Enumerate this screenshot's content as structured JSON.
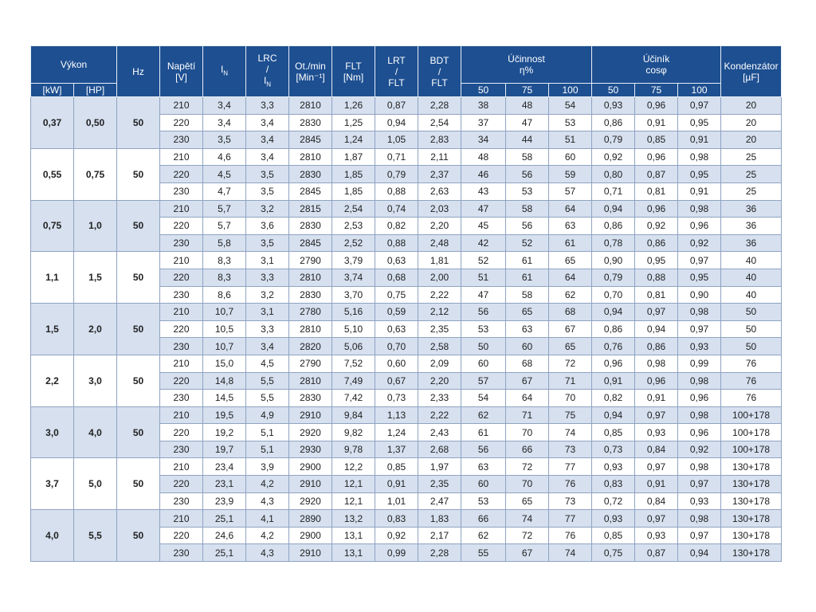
{
  "header": {
    "vykon": "Výkon",
    "kw": "[kW]",
    "hp": "[HP]",
    "hz": "Hz",
    "napeti": [
      "Napětí",
      "[V]"
    ],
    "in": [
      "I",
      "N"
    ],
    "lrc": [
      "LRC",
      "/",
      "I",
      "N"
    ],
    "ot": [
      "Ot./min",
      "[Min⁻¹]"
    ],
    "flt": [
      "FLT",
      "[Nm]"
    ],
    "lrt": [
      "LRT",
      "/",
      "FLT"
    ],
    "bdt": [
      "BDT",
      "/",
      "FLT"
    ],
    "ucinnost": [
      "Účinnost",
      "η%"
    ],
    "ucinnost_cols": [
      "50",
      "75",
      "100"
    ],
    "ucinik": [
      "Účiník",
      "cosφ"
    ],
    "ucinik_cols": [
      "50",
      "75",
      "100"
    ],
    "kondenzator": [
      "Kondenzátor",
      "[µF]"
    ]
  },
  "groups": [
    {
      "kw": "0,37",
      "hp": "0,50",
      "hz": "50",
      "rows": [
        [
          "210",
          "3,4",
          "3,3",
          "2810",
          "1,26",
          "0,87",
          "2,28",
          "38",
          "48",
          "54",
          "0,93",
          "0,96",
          "0,97",
          "20"
        ],
        [
          "220",
          "3,4",
          "3,4",
          "2830",
          "1,25",
          "0,94",
          "2,54",
          "37",
          "47",
          "53",
          "0,86",
          "0,91",
          "0,95",
          "20"
        ],
        [
          "230",
          "3,5",
          "3,4",
          "2845",
          "1,24",
          "1,05",
          "2,83",
          "34",
          "44",
          "51",
          "0,79",
          "0,85",
          "0,91",
          "20"
        ]
      ]
    },
    {
      "kw": "0,55",
      "hp": "0,75",
      "hz": "50",
      "rows": [
        [
          "210",
          "4,6",
          "3,4",
          "2810",
          "1,87",
          "0,71",
          "2,11",
          "48",
          "58",
          "60",
          "0,92",
          "0,96",
          "0,98",
          "25"
        ],
        [
          "220",
          "4,5",
          "3,5",
          "2830",
          "1,85",
          "0,79",
          "2,37",
          "46",
          "56",
          "59",
          "0,80",
          "0,87",
          "0,95",
          "25"
        ],
        [
          "230",
          "4,7",
          "3,5",
          "2845",
          "1,85",
          "0,88",
          "2,63",
          "43",
          "53",
          "57",
          "0,71",
          "0,81",
          "0,91",
          "25"
        ]
      ]
    },
    {
      "kw": "0,75",
      "hp": "1,0",
      "hz": "50",
      "rows": [
        [
          "210",
          "5,7",
          "3,2",
          "2815",
          "2,54",
          "0,74",
          "2,03",
          "47",
          "58",
          "64",
          "0,94",
          "0,96",
          "0,98",
          "36"
        ],
        [
          "220",
          "5,7",
          "3,6",
          "2830",
          "2,53",
          "0,82",
          "2,20",
          "45",
          "56",
          "63",
          "0,86",
          "0,92",
          "0,96",
          "36"
        ],
        [
          "230",
          "5,8",
          "3,5",
          "2845",
          "2,52",
          "0,88",
          "2,48",
          "42",
          "52",
          "61",
          "0,78",
          "0,86",
          "0,92",
          "36"
        ]
      ]
    },
    {
      "kw": "1,1",
      "hp": "1,5",
      "hz": "50",
      "rows": [
        [
          "210",
          "8,3",
          "3,1",
          "2790",
          "3,79",
          "0,63",
          "1,81",
          "52",
          "61",
          "65",
          "0,90",
          "0,95",
          "0,97",
          "40"
        ],
        [
          "220",
          "8,3",
          "3,3",
          "2810",
          "3,74",
          "0,68",
          "2,00",
          "51",
          "61",
          "64",
          "0,79",
          "0,88",
          "0,95",
          "40"
        ],
        [
          "230",
          "8,6",
          "3,2",
          "2830",
          "3,70",
          "0,75",
          "2,22",
          "47",
          "58",
          "62",
          "0,70",
          "0,81",
          "0,90",
          "40"
        ]
      ]
    },
    {
      "kw": "1,5",
      "hp": "2,0",
      "hz": "50",
      "rows": [
        [
          "210",
          "10,7",
          "3,1",
          "2780",
          "5,16",
          "0,59",
          "2,12",
          "56",
          "65",
          "68",
          "0,94",
          "0,97",
          "0,98",
          "50"
        ],
        [
          "220",
          "10,5",
          "3,3",
          "2810",
          "5,10",
          "0,63",
          "2,35",
          "53",
          "63",
          "67",
          "0,86",
          "0,94",
          "0,97",
          "50"
        ],
        [
          "230",
          "10,7",
          "3,4",
          "2820",
          "5,06",
          "0,70",
          "2,58",
          "50",
          "60",
          "65",
          "0,76",
          "0,86",
          "0,93",
          "50"
        ]
      ]
    },
    {
      "kw": "2,2",
      "hp": "3,0",
      "hz": "50",
      "rows": [
        [
          "210",
          "15,0",
          "4,5",
          "2790",
          "7,52",
          "0,60",
          "2,09",
          "60",
          "68",
          "72",
          "0,96",
          "0,98",
          "0,99",
          "76"
        ],
        [
          "220",
          "14,8",
          "5,5",
          "2810",
          "7,49",
          "0,67",
          "2,20",
          "57",
          "67",
          "71",
          "0,91",
          "0,96",
          "0,98",
          "76"
        ],
        [
          "230",
          "14,5",
          "5,5",
          "2830",
          "7,42",
          "0,73",
          "2,33",
          "54",
          "64",
          "70",
          "0,82",
          "0,91",
          "0,96",
          "76"
        ]
      ]
    },
    {
      "kw": "3,0",
      "hp": "4,0",
      "hz": "50",
      "rows": [
        [
          "210",
          "19,5",
          "4,9",
          "2910",
          "9,84",
          "1,13",
          "2,22",
          "62",
          "71",
          "75",
          "0,94",
          "0,97",
          "0,98",
          "100+178"
        ],
        [
          "220",
          "19,2",
          "5,1",
          "2920",
          "9,82",
          "1,24",
          "2,43",
          "61",
          "70",
          "74",
          "0,85",
          "0,93",
          "0,96",
          "100+178"
        ],
        [
          "230",
          "19,7",
          "5,1",
          "2930",
          "9,78",
          "1,37",
          "2,68",
          "56",
          "66",
          "73",
          "0,73",
          "0,84",
          "0,92",
          "100+178"
        ]
      ]
    },
    {
      "kw": "3,7",
      "hp": "5,0",
      "hz": "50",
      "rows": [
        [
          "210",
          "23,4",
          "3,9",
          "2900",
          "12,2",
          "0,85",
          "1,97",
          "63",
          "72",
          "77",
          "0,93",
          "0,97",
          "0,98",
          "130+178"
        ],
        [
          "220",
          "23,1",
          "4,2",
          "2910",
          "12,1",
          "0,91",
          "2,35",
          "60",
          "70",
          "76",
          "0,83",
          "0,91",
          "0,97",
          "130+178"
        ],
        [
          "230",
          "23,9",
          "4,3",
          "2920",
          "12,1",
          "1,01",
          "2,47",
          "53",
          "65",
          "73",
          "0,72",
          "0,84",
          "0,93",
          "130+178"
        ]
      ]
    },
    {
      "kw": "4,0",
      "hp": "5,5",
      "hz": "50",
      "rows": [
        [
          "210",
          "25,1",
          "4,1",
          "2890",
          "13,2",
          "0,83",
          "1,83",
          "66",
          "74",
          "77",
          "0,93",
          "0,97",
          "0,98",
          "130+178"
        ],
        [
          "220",
          "24,6",
          "4,2",
          "2900",
          "13,1",
          "0,92",
          "2,17",
          "62",
          "72",
          "76",
          "0,85",
          "0,93",
          "0,97",
          "130+178"
        ],
        [
          "230",
          "25,1",
          "4,3",
          "2910",
          "13,1",
          "0,99",
          "2,28",
          "55",
          "67",
          "74",
          "0,75",
          "0,87",
          "0,94",
          "130+178"
        ]
      ]
    }
  ]
}
